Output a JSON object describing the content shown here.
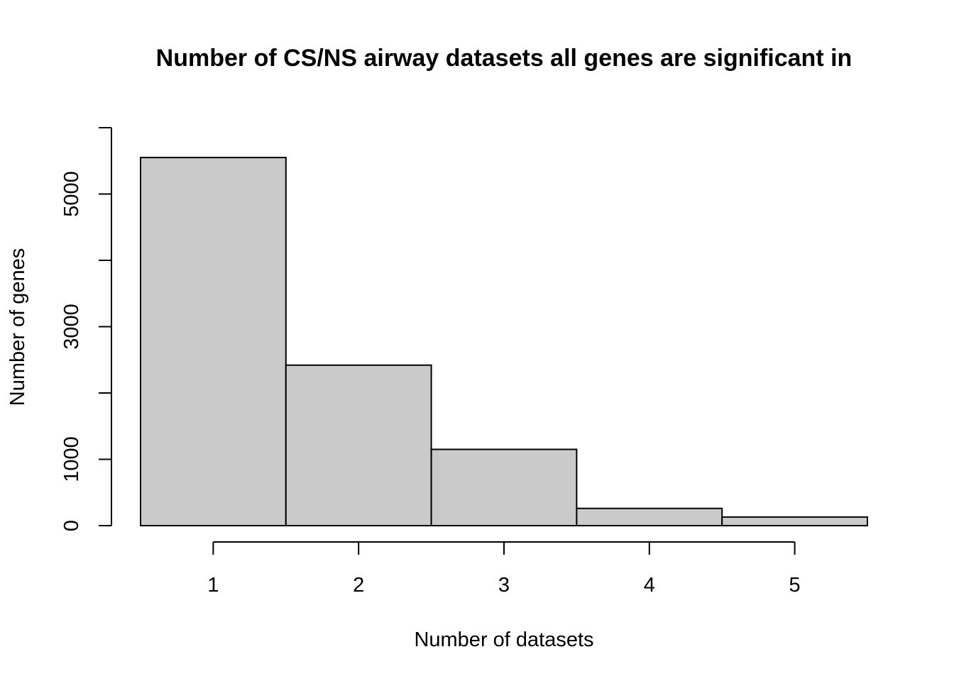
{
  "chart_data": {
    "type": "bar",
    "title": "Number of CS/NS airway datasets all genes are significant in",
    "xlabel": "Number of datasets",
    "ylabel": "Number of genes",
    "categories": [
      1,
      2,
      3,
      4,
      5
    ],
    "values": [
      5550,
      2420,
      1150,
      260,
      130
    ],
    "xlim": [
      0.5,
      5.5
    ],
    "ylim": [
      0,
      6000
    ],
    "x_ticks": [
      "1",
      "2",
      "3",
      "4",
      "5"
    ],
    "y_ticks": [
      0,
      1000,
      2000,
      3000,
      4000,
      5000,
      6000
    ],
    "y_tick_labels": [
      "0",
      "1000",
      "",
      "3000",
      "",
      "5000",
      ""
    ],
    "grid": false,
    "bar_fill": "#cacaca",
    "bar_stroke": "#000000"
  }
}
